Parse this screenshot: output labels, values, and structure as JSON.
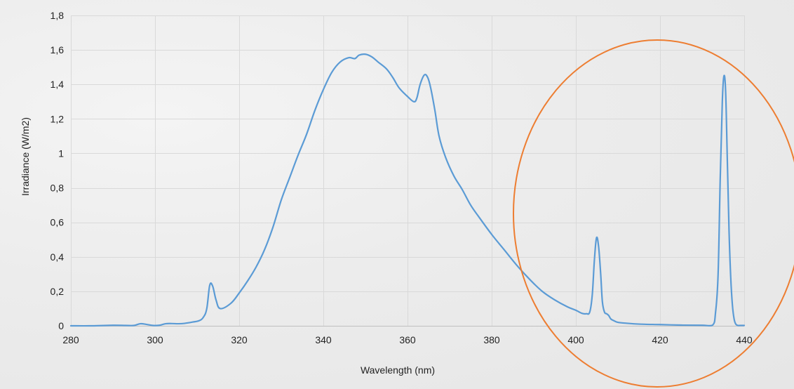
{
  "chart_data": {
    "type": "line",
    "title": "",
    "xlabel": "Wavelength (nm)",
    "ylabel": "Irradiance (W/m2)",
    "xlim": [
      280,
      440
    ],
    "ylim": [
      0,
      1.8
    ],
    "x_ticks": [
      280,
      300,
      320,
      340,
      360,
      380,
      400,
      420,
      440
    ],
    "y_ticks": [
      0,
      0.2,
      0.4,
      0.6,
      0.8,
      1,
      1.2,
      1.4,
      1.6,
      1.8
    ],
    "x_tick_labels": [
      "280",
      "300",
      "320",
      "340",
      "360",
      "380",
      "400",
      "420",
      "440"
    ],
    "y_tick_labels": [
      "0",
      "0,2",
      "0,4",
      "0,6",
      "0,8",
      "1",
      "1,2",
      "1,4",
      "1,6",
      "1,8"
    ],
    "grid": true,
    "series_color": "#5b9bd5",
    "highlight_color": "#ed7d31",
    "series": [
      {
        "x": [
          280,
          285,
          290,
          293,
          295,
          296.5,
          298,
          299.5,
          301,
          302.5,
          304,
          305.5,
          307,
          309,
          310.5,
          311.5,
          312.3,
          313,
          313.7,
          314.5,
          315.5,
          318,
          320,
          322,
          324,
          326,
          328,
          330,
          332,
          334,
          336,
          338,
          340,
          342,
          344,
          346,
          347.5,
          348.5,
          350,
          351.5,
          353,
          355,
          356.5,
          358,
          360,
          361.5,
          362.2,
          363,
          364,
          364.8,
          365.5,
          366.5,
          367.5,
          369,
          371,
          373,
          375,
          377,
          380,
          383,
          386,
          389,
          392,
          395,
          398,
          400,
          401.5,
          402.5,
          403.3,
          403.9,
          404.4,
          404.9,
          405.4,
          405.9,
          406.3,
          406.8,
          407.3,
          407.8,
          408.3,
          409,
          410,
          412,
          415,
          420,
          425,
          430,
          432.5,
          433.2,
          433.8,
          434.3,
          434.8,
          435.2,
          435.6,
          436,
          436.4,
          436.8,
          437.2,
          437.6,
          438,
          438.5,
          439,
          440
        ],
        "y": [
          0,
          0,
          0.003,
          0.002,
          0.002,
          0.012,
          0.008,
          0.002,
          0.003,
          0.012,
          0.013,
          0.012,
          0.014,
          0.022,
          0.03,
          0.05,
          0.1,
          0.235,
          0.23,
          0.15,
          0.1,
          0.13,
          0.19,
          0.26,
          0.34,
          0.44,
          0.57,
          0.73,
          0.86,
          0.99,
          1.11,
          1.25,
          1.37,
          1.47,
          1.53,
          1.555,
          1.55,
          1.57,
          1.575,
          1.56,
          1.53,
          1.49,
          1.44,
          1.38,
          1.33,
          1.3,
          1.32,
          1.4,
          1.455,
          1.44,
          1.38,
          1.25,
          1.1,
          0.98,
          0.87,
          0.79,
          0.7,
          0.63,
          0.53,
          0.44,
          0.35,
          0.27,
          0.2,
          0.15,
          0.11,
          0.09,
          0.072,
          0.07,
          0.08,
          0.18,
          0.38,
          0.51,
          0.46,
          0.3,
          0.14,
          0.08,
          0.07,
          0.06,
          0.04,
          0.03,
          0.02,
          0.015,
          0.01,
          0.007,
          0.004,
          0.003,
          0.004,
          0.08,
          0.3,
          0.85,
          1.3,
          1.45,
          1.35,
          0.95,
          0.55,
          0.28,
          0.12,
          0.04,
          0.01,
          0.002,
          0.002,
          0.002
        ]
      }
    ]
  }
}
